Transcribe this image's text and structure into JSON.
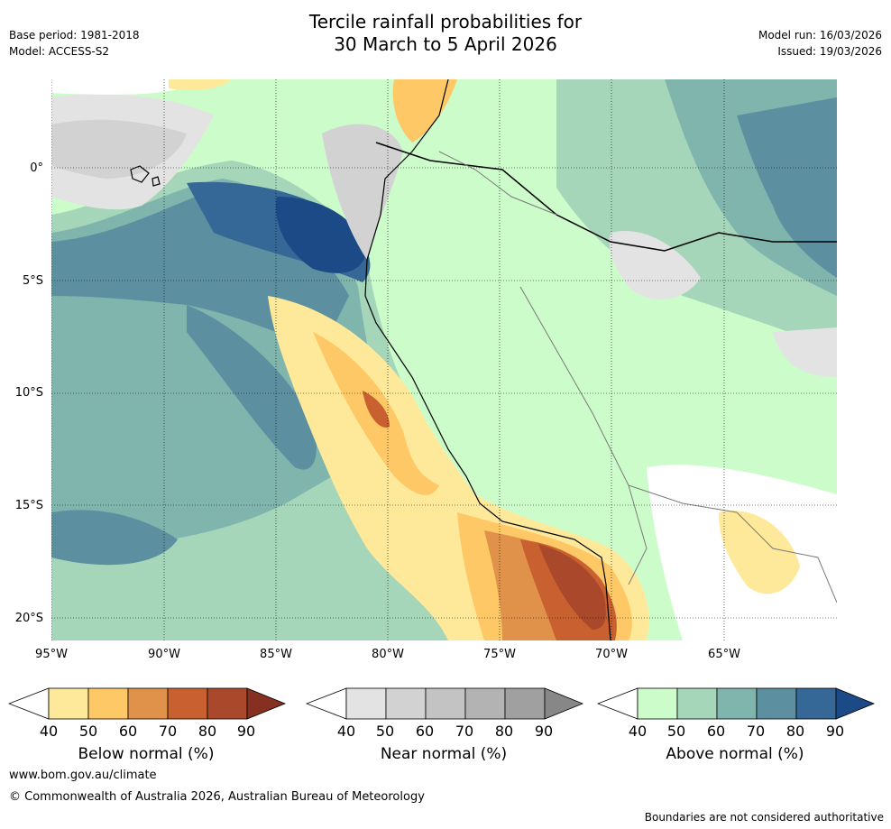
{
  "header": {
    "title_line1": "Tercile rainfall probabilities for",
    "title_line2": "30 March to 5 April 2026",
    "base_period": "Base period: 1981-2018",
    "model": "Model: ACCESS-S2",
    "model_run": "Model run: 16/03/2026",
    "issued": "Issued: 19/03/2026"
  },
  "map": {
    "lat_labels": [
      "0°",
      "5°S",
      "10°S",
      "15°S",
      "20°S"
    ],
    "lon_labels": [
      "95°W",
      "90°W",
      "85°W",
      "80°W",
      "75°W",
      "70°W",
      "65°W"
    ]
  },
  "legends": [
    {
      "label": "Below normal (%)",
      "ticks": [
        "40",
        "50",
        "60",
        "70",
        "80",
        "90"
      ],
      "colors": [
        "#ffffff",
        "#fee99a",
        "#fdc865",
        "#e0914a",
        "#c8602f",
        "#a9482a",
        "#873021"
      ]
    },
    {
      "label": "Near normal (%)",
      "ticks": [
        "40",
        "50",
        "60",
        "70",
        "80",
        "90"
      ],
      "colors": [
        "#ffffff",
        "#e3e3e3",
        "#d2d2d2",
        "#c3c3c3",
        "#b3b3b3",
        "#a0a0a0",
        "#878787"
      ]
    },
    {
      "label": "Above normal (%)",
      "ticks": [
        "40",
        "50",
        "60",
        "70",
        "80",
        "90"
      ],
      "colors": [
        "#ffffff",
        "#cdfccb",
        "#a5d6b9",
        "#7fb5ad",
        "#5c8fa0",
        "#356897",
        "#1b4a86"
      ]
    }
  ],
  "footer": {
    "url": "www.bom.gov.au/climate",
    "copyright": "© Commonwealth of Australia 2026, Australian Bureau of Meteorology",
    "disclaimer": "Boundaries are not considered authoritative"
  }
}
